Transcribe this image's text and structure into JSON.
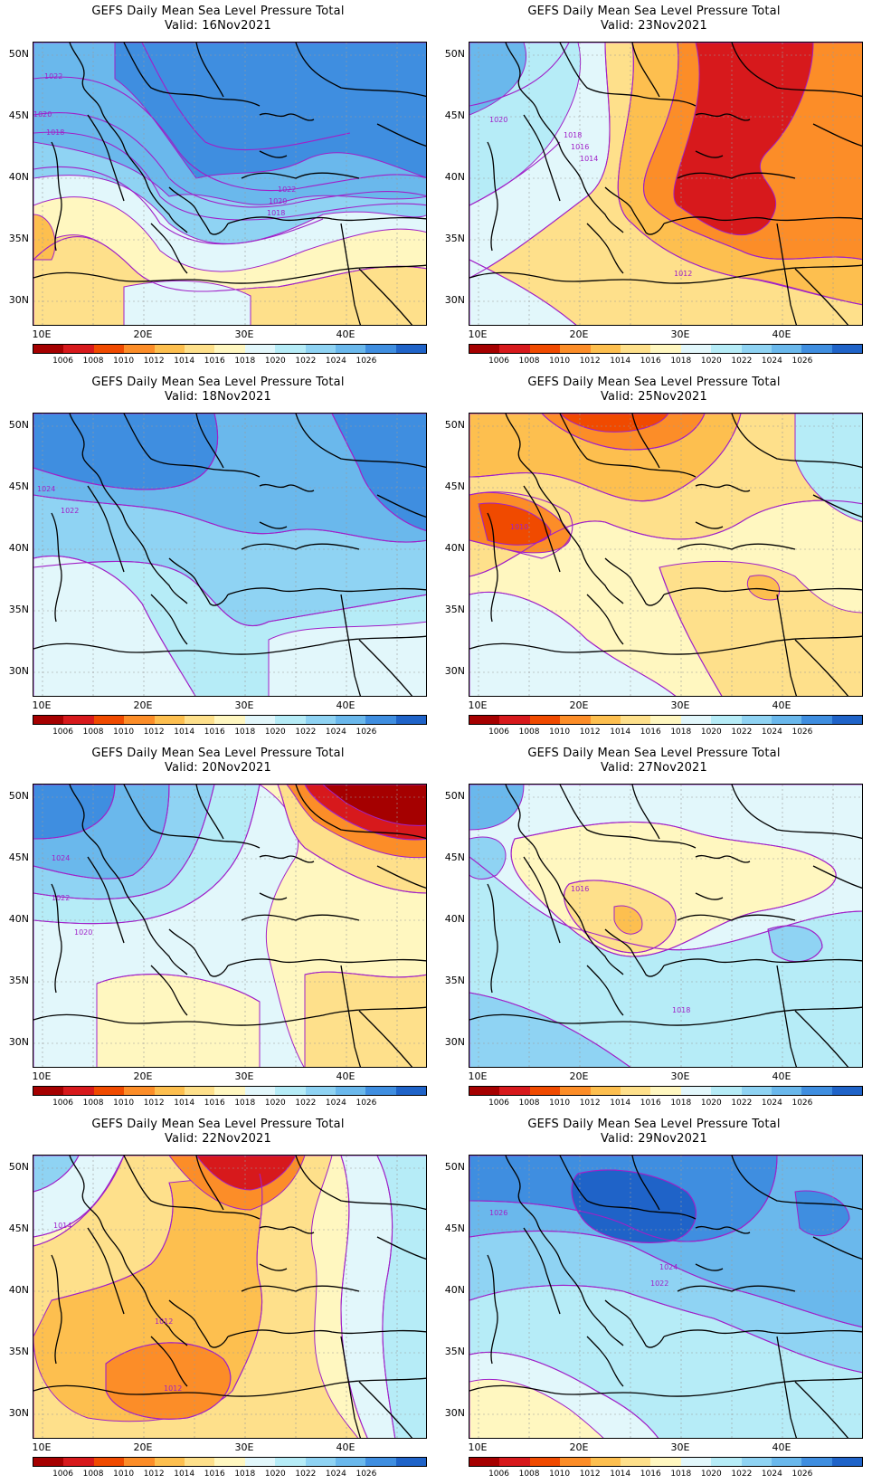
{
  "panels": [
    {
      "title": "GEFS Daily Mean Sea Level Pressure Total",
      "valid": "Valid: 16Nov2021",
      "isobar_labels": [
        "1022",
        "1020",
        "1018",
        "1022",
        "1020",
        "1018"
      ]
    },
    {
      "title": "GEFS Daily Mean Sea Level Pressure Total",
      "valid": "Valid: 23Nov2021",
      "isobar_labels": [
        "1020",
        "1018",
        "1016",
        "1014",
        "1012"
      ]
    },
    {
      "title": "GEFS Daily Mean Sea Level Pressure Total",
      "valid": "Valid: 18Nov2021",
      "isobar_labels": [
        "1024",
        "1022"
      ]
    },
    {
      "title": "GEFS Daily Mean Sea Level Pressure Total",
      "valid": "Valid: 25Nov2021",
      "isobar_labels": [
        "1010"
      ]
    },
    {
      "title": "GEFS Daily Mean Sea Level Pressure Total",
      "valid": "Valid: 20Nov2021",
      "isobar_labels": [
        "1024",
        "1022",
        "1020"
      ]
    },
    {
      "title": "GEFS Daily Mean Sea Level Pressure Total",
      "valid": "Valid: 27Nov2021",
      "isobar_labels": [
        "1016",
        "1018"
      ]
    },
    {
      "title": "GEFS Daily Mean Sea Level Pressure Total",
      "valid": "Valid: 22Nov2021",
      "isobar_labels": [
        "1014",
        "1012",
        "1012"
      ]
    },
    {
      "title": "GEFS Daily Mean Sea Level Pressure Total",
      "valid": "Valid: 29Nov2021",
      "isobar_labels": [
        "1026",
        "1024",
        "1022"
      ]
    }
  ],
  "lat_labels": [
    "50N",
    "45N",
    "40N",
    "35N",
    "30N"
  ],
  "lon_labels": [
    "10E",
    "20E",
    "30E",
    "40E"
  ],
  "colorbar": {
    "labels": [
      "1006",
      "1008",
      "1010",
      "1012",
      "1014",
      "1016",
      "1018",
      "1020",
      "1022",
      "1024",
      "1026"
    ],
    "colors": [
      "#a50000",
      "#d7191c",
      "#f04a00",
      "#fc8d28",
      "#fdbf4f",
      "#fee08b",
      "#fff7c0",
      "#e2f7fb",
      "#b6ecf7",
      "#8fd3f3",
      "#6ab8ec",
      "#3f8ee0",
      "#1f63c8"
    ]
  }
}
